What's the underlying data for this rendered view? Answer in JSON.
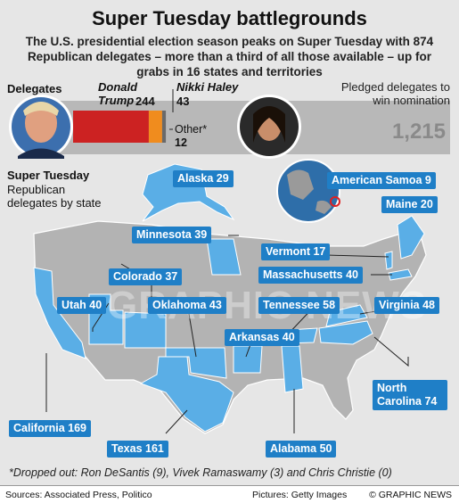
{
  "title": "Super Tuesday battlegrounds",
  "subtitle": "The U.S. presidential election season peaks on Super Tuesday with 874 Republican delegates – more than a third of all those available – up for grabs in 16 states and territories",
  "delegates": {
    "heading": "Delegates",
    "pledged_label": "Pledged delegates to win nomination",
    "total": "1,215",
    "total_value": 1215,
    "trump": {
      "name": "Donald Trump",
      "count_label": "244",
      "value": 244,
      "color": "#cc2222"
    },
    "haley": {
      "name": "Nikki Haley",
      "count_label": "43",
      "value": 43,
      "color": "#f08c1e"
    },
    "other": {
      "name": "Other*",
      "count_label": "12",
      "value": 12,
      "color": "#6a6a6a"
    }
  },
  "map": {
    "heading": "Super Tuesday",
    "subheading": "Republican delegates by state",
    "watermark": "GRAPHIC NEWS",
    "highlight_color": "#5aaee6",
    "base_color": "#b3b3b3",
    "states": [
      {
        "id": "alaska",
        "label": "Alaska 29"
      },
      {
        "id": "american-samoa",
        "label": "American Samoa 9"
      },
      {
        "id": "maine",
        "label": "Maine 20"
      },
      {
        "id": "minnesota",
        "label": "Minnesota 39"
      },
      {
        "id": "vermont",
        "label": "Vermont 17"
      },
      {
        "id": "colorado",
        "label": "Colorado 37"
      },
      {
        "id": "massachusetts",
        "label": "Massachusetts 40"
      },
      {
        "id": "utah",
        "label": "Utah 40"
      },
      {
        "id": "oklahoma",
        "label": "Oklahoma 43"
      },
      {
        "id": "tennessee",
        "label": "Tennessee 58"
      },
      {
        "id": "virginia",
        "label": "Virginia 48"
      },
      {
        "id": "arkansas",
        "label": "Arkansas 40"
      },
      {
        "id": "north-carolina",
        "label": "North Carolina 74"
      },
      {
        "id": "california",
        "label": "California 169"
      },
      {
        "id": "texas",
        "label": "Texas 161"
      },
      {
        "id": "alabama",
        "label": "Alabama 50"
      }
    ]
  },
  "footnote": "*Dropped out: Ron DeSantis (9), Vivek Ramaswamy (3) and Chris Christie (0)",
  "footer": {
    "sources": "Sources: Associated Press, Politico",
    "pictures": "Pictures: Getty Images",
    "credit": "© GRAPHIC NEWS"
  }
}
